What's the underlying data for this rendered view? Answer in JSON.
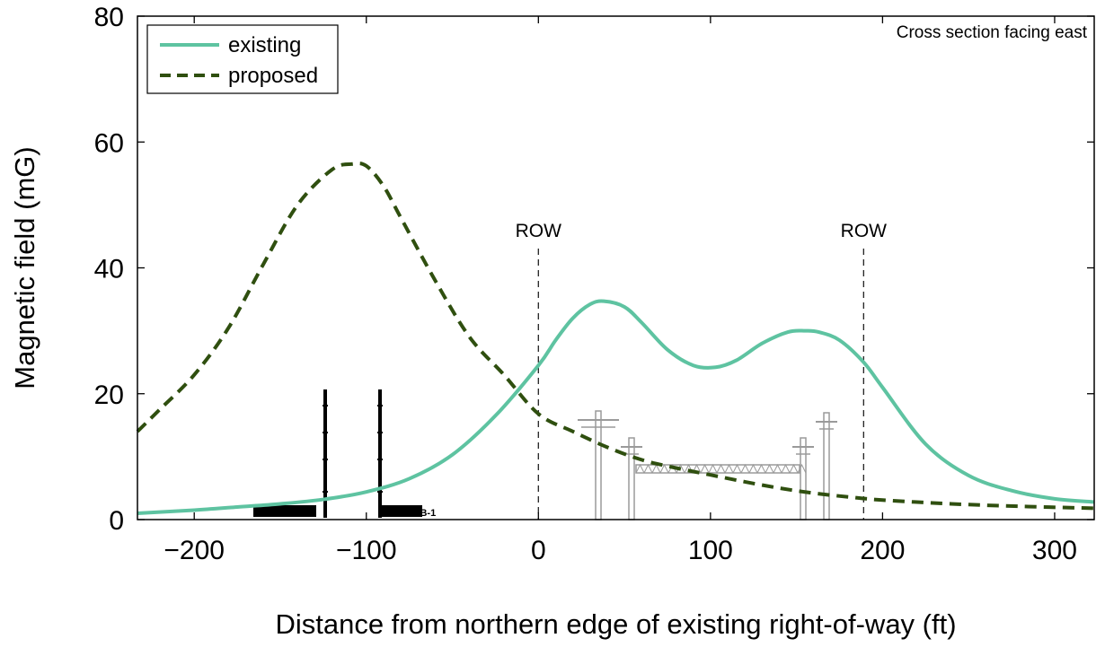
{
  "chart_data": {
    "type": "line",
    "title": "",
    "annotation_top_right": "Cross section facing east",
    "xlabel": "Distance from northern edge of existing right-of-way (ft)",
    "ylabel": "Magnetic field (mG)",
    "xlim": [
      -233,
      323
    ],
    "ylim": [
      0,
      80
    ],
    "x_ticks": [
      -200,
      -100,
      0,
      100,
      200,
      300
    ],
    "x_tick_labels": [
      "−200",
      "−100",
      "0",
      "100",
      "200",
      "300"
    ],
    "y_ticks": [
      0,
      20,
      40,
      60,
      80
    ],
    "y_tick_labels": [
      "0",
      "20",
      "40",
      "60",
      "80"
    ],
    "grid": false,
    "legend_position": "top-left",
    "row_markers": [
      {
        "x": 0,
        "label": "ROW"
      },
      {
        "x": 189,
        "label": "ROW"
      }
    ],
    "series": [
      {
        "name": "existing",
        "style": "solid",
        "color": "#5ec3a1",
        "x": [
          -233,
          -200,
          -175,
          -150,
          -125,
          -100,
          -75,
          -50,
          -25,
          0,
          10,
          20,
          30,
          38,
          50,
          60,
          75,
          90,
          103,
          115,
          130,
          145,
          155,
          163,
          175,
          189,
          200,
          225,
          250,
          275,
          300,
          323
        ],
        "y": [
          1.0,
          1.5,
          2.0,
          2.5,
          3.2,
          4.4,
          6.5,
          10.3,
          16.5,
          24.5,
          28.5,
          32.0,
          34.2,
          34.7,
          33.8,
          31.3,
          27.0,
          24.5,
          24.2,
          25.3,
          28.0,
          29.8,
          30.0,
          29.8,
          28.5,
          25.0,
          21.0,
          12.0,
          7.0,
          4.6,
          3.3,
          2.8
        ]
      },
      {
        "name": "proposed",
        "style": "dashed",
        "color": "#2f4f0f",
        "x": [
          -233,
          -220,
          -200,
          -180,
          -160,
          -140,
          -120,
          -108,
          -100,
          -90,
          -80,
          -60,
          -40,
          -20,
          0,
          20,
          40,
          60,
          80,
          100,
          120,
          140,
          160,
          180,
          200,
          240,
          280,
          323
        ],
        "y": [
          14.0,
          17.5,
          23.0,
          30.5,
          40.5,
          50.0,
          55.6,
          56.5,
          56.2,
          53.0,
          48.0,
          38.0,
          29.0,
          23.0,
          16.8,
          14.0,
          11.5,
          9.5,
          8.2,
          7.1,
          6.0,
          5.0,
          4.2,
          3.6,
          3.1,
          2.5,
          2.1,
          1.8
        ]
      }
    ]
  }
}
